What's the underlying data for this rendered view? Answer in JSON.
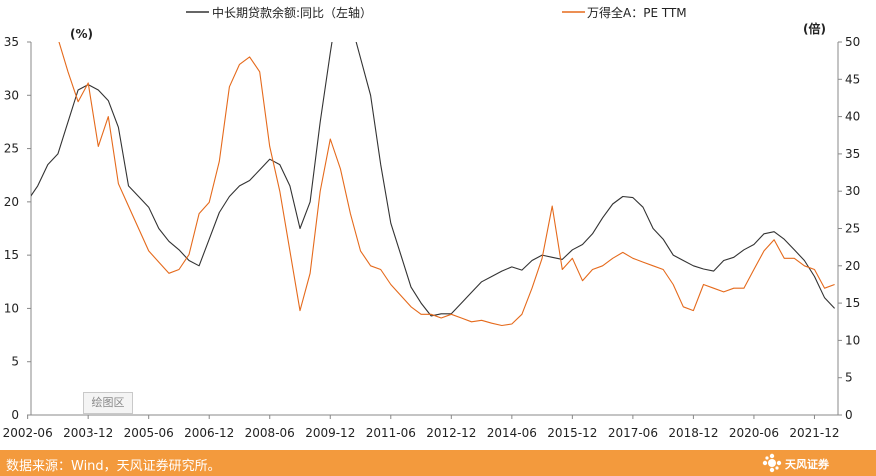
{
  "chart_data": {
    "type": "line",
    "legend": {
      "placement": "top"
    },
    "left_axis": {
      "unit_label": "(%)",
      "ylim": [
        0,
        35
      ],
      "ticks": [
        "0",
        "5",
        "10",
        "15",
        "20",
        "25",
        "30",
        "35"
      ]
    },
    "right_axis": {
      "unit_label": "(倍)",
      "ylim": [
        0,
        50
      ],
      "ticks": [
        "0",
        "5",
        "10",
        "15",
        "20",
        "25",
        "30",
        "35",
        "40",
        "45",
        "50"
      ]
    },
    "x_ticks": [
      "2002-06",
      "2003-12",
      "2005-06",
      "2006-12",
      "2008-06",
      "2009-12",
      "2011-06",
      "2012-12",
      "2014-06",
      "2015-12",
      "2017-06",
      "2018-12",
      "2020-06",
      "2021-12"
    ],
    "grid": false,
    "series": [
      {
        "name": "中长期贷款余额:同比（左轴）",
        "axis": "left",
        "color": "#333333",
        "points": [
          [
            "2002-06",
            20.1
          ],
          [
            "2002-09",
            21.5
          ],
          [
            "2002-12",
            23.5
          ],
          [
            "2003-03",
            24.5
          ],
          [
            "2003-06",
            27.5
          ],
          [
            "2003-09",
            30.5
          ],
          [
            "2003-12",
            31.0
          ],
          [
            "2004-03",
            30.5
          ],
          [
            "2004-06",
            29.5
          ],
          [
            "2004-09",
            27.0
          ],
          [
            "2004-12",
            21.5
          ],
          [
            "2005-03",
            20.5
          ],
          [
            "2005-06",
            19.5
          ],
          [
            "2005-09",
            17.5
          ],
          [
            "2005-12",
            16.3
          ],
          [
            "2006-03",
            15.5
          ],
          [
            "2006-06",
            14.5
          ],
          [
            "2006-09",
            14.0
          ],
          [
            "2006-12",
            16.5
          ],
          [
            "2007-03",
            19.0
          ],
          [
            "2007-06",
            20.5
          ],
          [
            "2007-09",
            21.5
          ],
          [
            "2007-12",
            22.0
          ],
          [
            "2008-03",
            23.0
          ],
          [
            "2008-06",
            24.0
          ],
          [
            "2008-09",
            23.5
          ],
          [
            "2008-12",
            21.5
          ],
          [
            "2009-03",
            17.5
          ],
          [
            "2009-06",
            20.0
          ],
          [
            "2009-09",
            27.5
          ],
          [
            "2009-12",
            34.0
          ],
          [
            "2010-03",
            40.0
          ],
          [
            "2010-06",
            37.0
          ],
          [
            "2010-09",
            33.5
          ],
          [
            "2010-12",
            30.0
          ],
          [
            "2011-03",
            23.5
          ],
          [
            "2011-06",
            18.0
          ],
          [
            "2011-09",
            15.0
          ],
          [
            "2011-12",
            12.0
          ],
          [
            "2012-03",
            10.5
          ],
          [
            "2012-06",
            9.3
          ],
          [
            "2012-09",
            9.5
          ],
          [
            "2012-12",
            9.5
          ],
          [
            "2013-03",
            10.5
          ],
          [
            "2013-06",
            11.5
          ],
          [
            "2013-09",
            12.5
          ],
          [
            "2013-12",
            13.0
          ],
          [
            "2014-03",
            13.5
          ],
          [
            "2014-06",
            13.9
          ],
          [
            "2014-09",
            13.6
          ],
          [
            "2014-12",
            14.5
          ],
          [
            "2015-03",
            15.0
          ],
          [
            "2015-06",
            14.8
          ],
          [
            "2015-09",
            14.6
          ],
          [
            "2015-12",
            15.5
          ],
          [
            "2016-03",
            16.0
          ],
          [
            "2016-06",
            17.0
          ],
          [
            "2016-09",
            18.5
          ],
          [
            "2016-12",
            19.8
          ],
          [
            "2017-03",
            20.5
          ],
          [
            "2017-06",
            20.4
          ],
          [
            "2017-09",
            19.5
          ],
          [
            "2017-12",
            17.5
          ],
          [
            "2018-03",
            16.5
          ],
          [
            "2018-06",
            15.0
          ],
          [
            "2018-09",
            14.5
          ],
          [
            "2018-12",
            14.0
          ],
          [
            "2019-03",
            13.7
          ],
          [
            "2019-06",
            13.5
          ],
          [
            "2019-09",
            14.5
          ],
          [
            "2019-12",
            14.8
          ],
          [
            "2020-03",
            15.5
          ],
          [
            "2020-06",
            16.0
          ],
          [
            "2020-09",
            17.0
          ],
          [
            "2020-12",
            17.2
          ],
          [
            "2021-03",
            16.5
          ],
          [
            "2021-06",
            15.5
          ],
          [
            "2021-09",
            14.5
          ],
          [
            "2021-12",
            13.0
          ],
          [
            "2022-03",
            11.0
          ],
          [
            "2022-06",
            10.0
          ]
        ]
      },
      {
        "name": "万得全A：PE TTM",
        "axis": "right",
        "color": "#e56a1c",
        "points": [
          [
            "2003-03",
            50.5
          ],
          [
            "2003-06",
            46.0
          ],
          [
            "2003-09",
            42.0
          ],
          [
            "2003-12",
            44.5
          ],
          [
            "2004-03",
            36.0
          ],
          [
            "2004-06",
            40.0
          ],
          [
            "2004-09",
            31.0
          ],
          [
            "2004-12",
            28.0
          ],
          [
            "2005-03",
            25.0
          ],
          [
            "2005-06",
            22.0
          ],
          [
            "2005-09",
            20.5
          ],
          [
            "2005-12",
            19.0
          ],
          [
            "2006-03",
            19.5
          ],
          [
            "2006-06",
            21.5
          ],
          [
            "2006-09",
            27.0
          ],
          [
            "2006-12",
            28.5
          ],
          [
            "2007-03",
            34.0
          ],
          [
            "2007-06",
            44.0
          ],
          [
            "2007-09",
            47.0
          ],
          [
            "2007-12",
            48.0
          ],
          [
            "2008-03",
            46.0
          ],
          [
            "2008-06",
            36.0
          ],
          [
            "2008-09",
            30.0
          ],
          [
            "2008-12",
            22.0
          ],
          [
            "2009-03",
            14.0
          ],
          [
            "2009-06",
            19.0
          ],
          [
            "2009-09",
            30.0
          ],
          [
            "2009-12",
            37.0
          ],
          [
            "2010-03",
            33.0
          ],
          [
            "2010-06",
            27.0
          ],
          [
            "2010-09",
            22.0
          ],
          [
            "2010-12",
            20.0
          ],
          [
            "2011-03",
            19.5
          ],
          [
            "2011-06",
            17.5
          ],
          [
            "2011-09",
            16.0
          ],
          [
            "2011-12",
            14.5
          ],
          [
            "2012-03",
            13.5
          ],
          [
            "2012-06",
            13.5
          ],
          [
            "2012-09",
            13.0
          ],
          [
            "2012-12",
            13.5
          ],
          [
            "2013-03",
            13.0
          ],
          [
            "2013-06",
            12.5
          ],
          [
            "2013-09",
            12.7
          ],
          [
            "2013-12",
            12.3
          ],
          [
            "2014-03",
            12.0
          ],
          [
            "2014-06",
            12.2
          ],
          [
            "2014-09",
            13.5
          ],
          [
            "2014-12",
            17.0
          ],
          [
            "2015-03",
            21.0
          ],
          [
            "2015-06",
            28.0
          ],
          [
            "2015-09",
            19.5
          ],
          [
            "2015-12",
            21.0
          ],
          [
            "2016-03",
            18.0
          ],
          [
            "2016-06",
            19.5
          ],
          [
            "2016-09",
            20.0
          ],
          [
            "2016-12",
            21.0
          ],
          [
            "2017-03",
            21.8
          ],
          [
            "2017-06",
            21.0
          ],
          [
            "2017-09",
            20.5
          ],
          [
            "2017-12",
            20.0
          ],
          [
            "2018-03",
            19.5
          ],
          [
            "2018-06",
            17.5
          ],
          [
            "2018-09",
            14.5
          ],
          [
            "2018-12",
            14.0
          ],
          [
            "2019-03",
            17.5
          ],
          [
            "2019-06",
            17.0
          ],
          [
            "2019-09",
            16.5
          ],
          [
            "2019-12",
            17.0
          ],
          [
            "2020-03",
            17.0
          ],
          [
            "2020-06",
            19.5
          ],
          [
            "2020-09",
            22.0
          ],
          [
            "2020-12",
            23.5
          ],
          [
            "2021-03",
            21.0
          ],
          [
            "2021-06",
            21.0
          ],
          [
            "2021-09",
            20.0
          ],
          [
            "2021-12",
            19.5
          ],
          [
            "2022-03",
            17.0
          ],
          [
            "2022-06",
            17.5
          ]
        ]
      }
    ]
  },
  "footer": {
    "source_text": "数据来源：Wind，天风证券研究所。",
    "brand_text": "天风证券",
    "plot_area_tag": "绘图区"
  }
}
